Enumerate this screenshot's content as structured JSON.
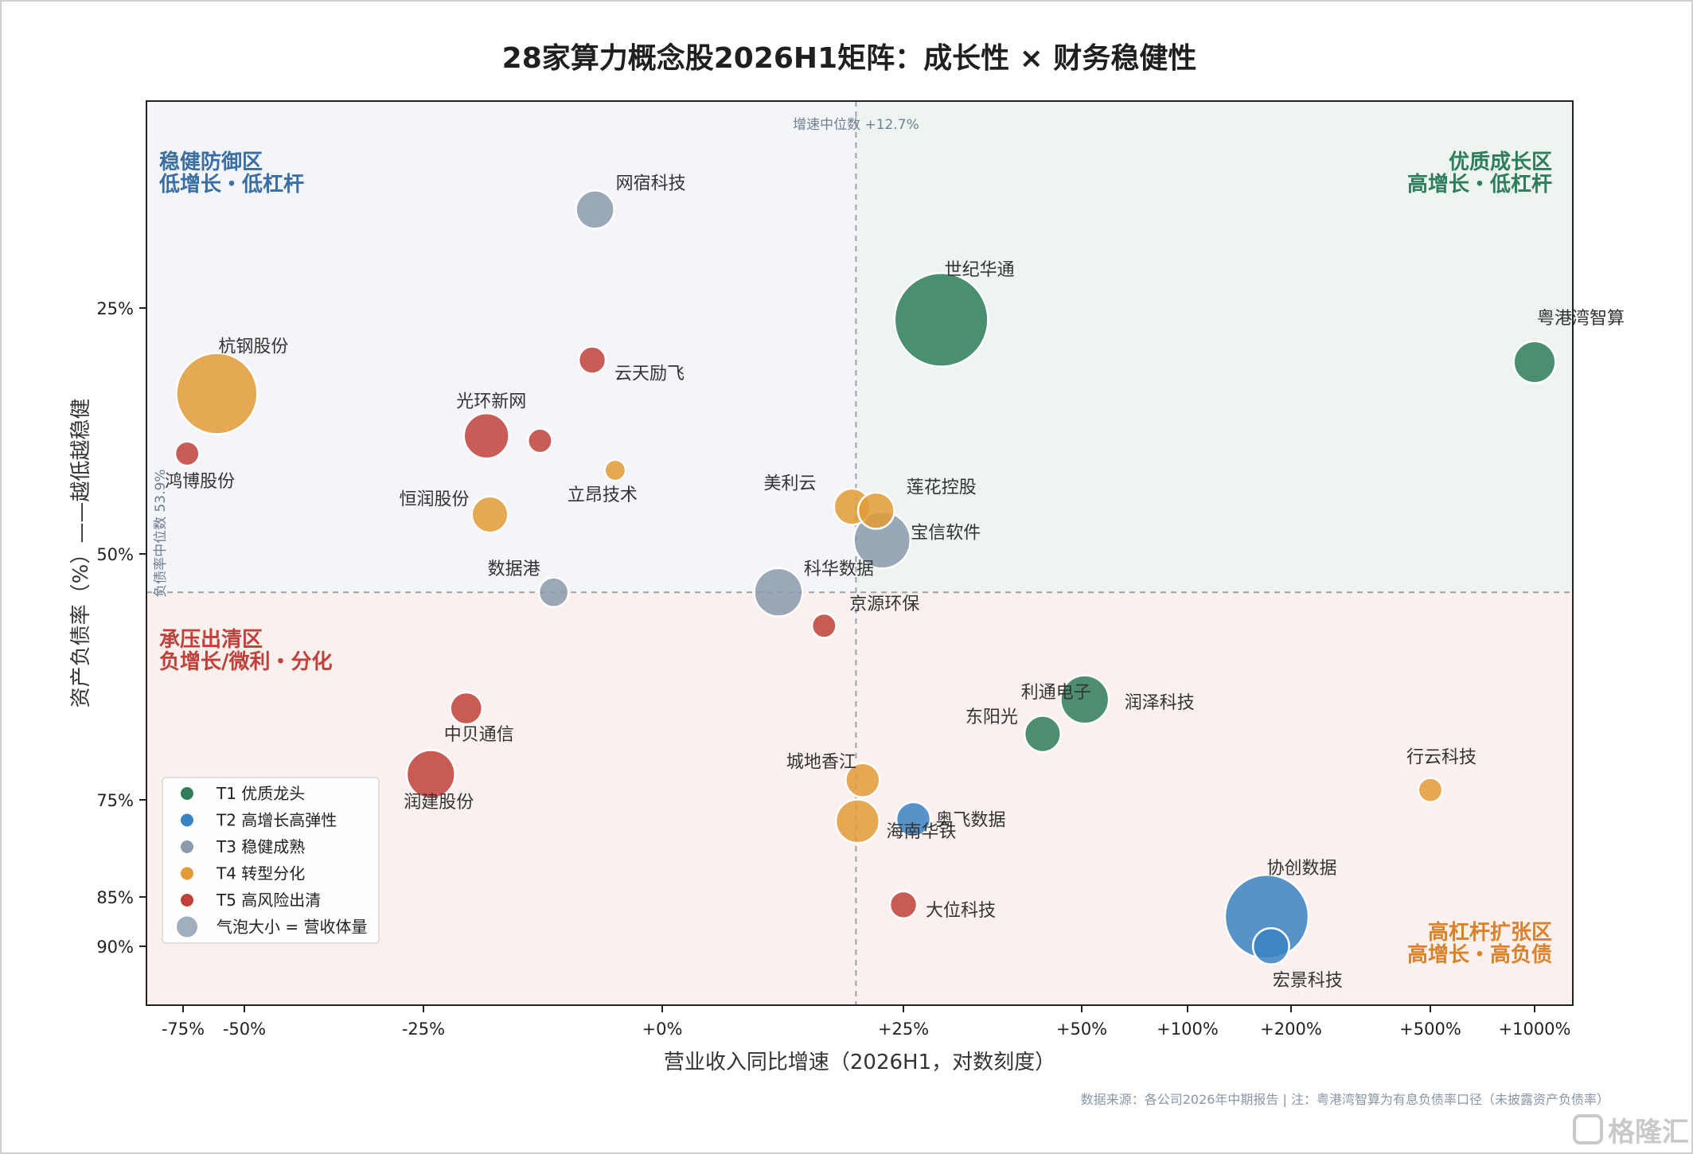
{
  "colors": {
    "T1": "#2e7d5b",
    "T2": "#3a83c2",
    "T3": "#8a9aad",
    "T4": "#e29b37",
    "T5": "#c0413a",
    "zone_tl_bg": "#f3f5f9",
    "zone_tr_bg": "#eef5f0",
    "zone_bottom_bg": "#faf0ee",
    "zone_tl_text": "#3a6ea5",
    "zone_tr_text": "#2e7d5b",
    "zone_bl_text": "#c0413a",
    "zone_br_text": "#d9822b"
  },
  "chart_data": {
    "type": "scatter",
    "title": "28家算力概念股2026H1矩阵：成长性 × 财务稳健性",
    "xlabel": "营业收入同比增速（2026H1，对数刻度）",
    "ylabel": "资产负债率（%）——越低越稳健",
    "x_ticks": [
      "-75%",
      "-50%",
      "-25%",
      "+0%",
      "+25%",
      "+50%",
      "+100%",
      "+200%",
      "+500%",
      "+1000%"
    ],
    "y_ticks": [
      "25%",
      "50%",
      "75%",
      "85%",
      "90%"
    ],
    "x_median_label": "增速中位数 +12.7%",
    "y_median_label": "负债率中位数 53.9%",
    "x_median": 12.7,
    "y_median": 53.9,
    "zones": {
      "top_left": [
        "稳健防御区",
        "低增长・低杠杆"
      ],
      "top_right": [
        "优质成长区",
        "高增长・低杠杆"
      ],
      "bottom_left": [
        "承压出清区",
        "负增长/微利・分化"
      ],
      "bottom_right": [
        "高杠杆扩张区",
        "高增长・高负债"
      ]
    },
    "legend": [
      {
        "tier": "T1",
        "label": "T1 优质龙头"
      },
      {
        "tier": "T2",
        "label": "T2 高增长高弹性"
      },
      {
        "tier": "T3",
        "label": "T3 稳健成熟"
      },
      {
        "tier": "T4",
        "label": "T4 转型分化"
      },
      {
        "tier": "T5",
        "label": "T5 高风险出清"
      },
      {
        "tier": "size",
        "label": "气泡大小 = 营收体量"
      }
    ],
    "points": [
      {
        "name": "网宿科技",
        "growth": -1.5,
        "debt": 15,
        "tier": "T3",
        "size": 1.0
      },
      {
        "name": "世纪华通",
        "growth": 29,
        "debt": 26.2,
        "tier": "T1",
        "size": 6.0
      },
      {
        "name": "粤港湾智算",
        "growth": 1000,
        "debt": 30.5,
        "tier": "T1",
        "size": 1.2
      },
      {
        "name": "杭钢股份",
        "growth": -60,
        "debt": 33.7,
        "tier": "T4",
        "size": 4.5
      },
      {
        "name": "云天励飞",
        "growth": -1.6,
        "debt": 30.3,
        "tier": "T5",
        "size": 0.5
      },
      {
        "name": "光环新网",
        "growth": -10,
        "debt": 38,
        "tier": "T5",
        "size": 1.4
      },
      {
        "name": "",
        "growth": -4.3,
        "debt": 38.5,
        "tier": "T5",
        "size": 0.4
      },
      {
        "name": "鸿博股份",
        "growth": -73,
        "debt": 39.8,
        "tier": "T5",
        "size": 0.4
      },
      {
        "name": "立昂技术",
        "growth": -0.9,
        "debt": 41.5,
        "tier": "T4",
        "size": 0.3
      },
      {
        "name": "美利云",
        "growth": 12,
        "debt": 45.2,
        "tier": "T4",
        "size": 0.9
      },
      {
        "name": "莲花控股",
        "growth": 17,
        "debt": 45.6,
        "tier": "T4",
        "size": 0.9
      },
      {
        "name": "恒润股份",
        "growth": -9.5,
        "debt": 46,
        "tier": "T4",
        "size": 0.9
      },
      {
        "name": "宝信软件",
        "growth": 18.5,
        "debt": 48.6,
        "tier": "T3",
        "size": 2.2
      },
      {
        "name": "数据港",
        "growth": -3.4,
        "debt": 53.9,
        "tier": "T3",
        "size": 0.6
      },
      {
        "name": "科华数据",
        "growth": 3.8,
        "debt": 53.9,
        "tier": "T3",
        "size": 1.6
      },
      {
        "name": "京源环保",
        "growth": 7.9,
        "debt": 57.3,
        "tier": "T5",
        "size": 0.4
      },
      {
        "name": "中贝通信",
        "growth": -13.5,
        "debt": 65.7,
        "tier": "T5",
        "size": 0.7
      },
      {
        "name": "利通电子",
        "growth": 51,
        "debt": 64.8,
        "tier": "T1",
        "size": 1.6
      },
      {
        "name": "东阳光",
        "growth": 43,
        "debt": 68.3,
        "tier": "T1",
        "size": 0.9
      },
      {
        "name": "润泽科技",
        "growth": 51,
        "debt": 64.8,
        "tier": "T1",
        "size": 0.0
      },
      {
        "name": "润建股份",
        "growth": -22.5,
        "debt": 72.4,
        "tier": "T5",
        "size": 1.6
      },
      {
        "name": "城地香江",
        "growth": 14,
        "debt": 73,
        "tier": "T4",
        "size": 0.8
      },
      {
        "name": "行云科技",
        "growth": 500,
        "debt": 74,
        "tier": "T4",
        "size": 0.4
      },
      {
        "name": "海南华铁",
        "growth": 13,
        "debt": 77.2,
        "tier": "T4",
        "size": 1.3
      },
      {
        "name": "奥飞数据",
        "growth": 26,
        "debt": 77,
        "tier": "T2",
        "size": 0.8
      },
      {
        "name": "大位科技",
        "growth": 25,
        "debt": 85.8,
        "tier": "T5",
        "size": 0.5
      },
      {
        "name": "协创数据",
        "growth": 170,
        "debt": 87,
        "tier": "T2",
        "size": 4.8
      },
      {
        "name": "宏景科技",
        "growth": 175,
        "debt": 90,
        "tier": "T2",
        "size": 0.9
      }
    ]
  },
  "source_note": "数据来源：各公司2026年中期报告 | 注：粤港湾智算为有息负债率口径（未披露资产负债率）",
  "watermark": "格隆汇"
}
